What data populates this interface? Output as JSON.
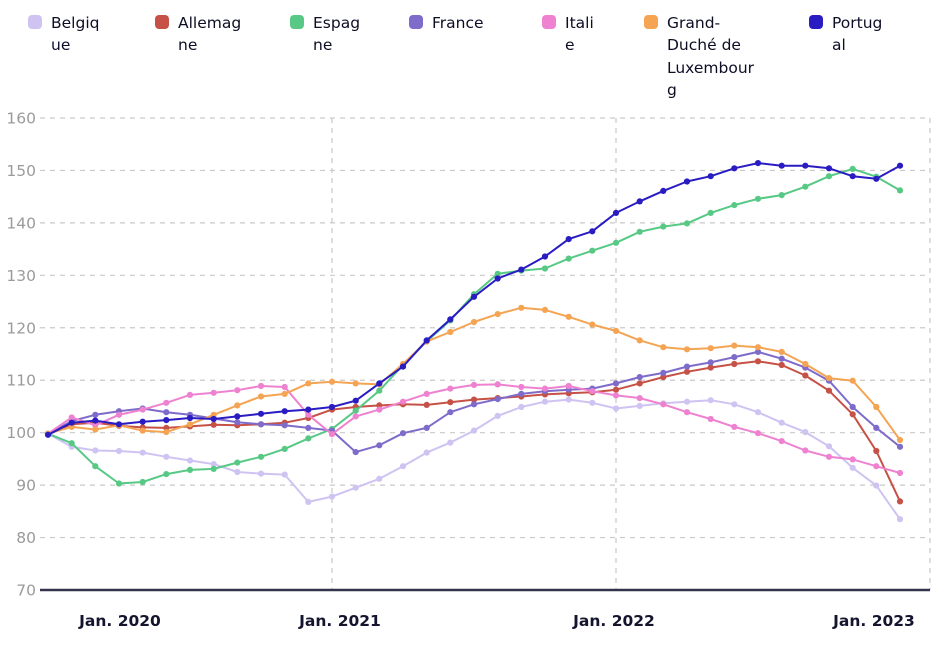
{
  "chart_data": {
    "type": "line",
    "title": "",
    "months_start": "Jan. 2020",
    "months_end": "Jan. 2023",
    "points_per_series": 37,
    "x_ticks": [
      {
        "label": "Jan. 2020",
        "index": 0
      },
      {
        "label": "Jan. 2021",
        "index": 12
      },
      {
        "label": "Jan. 2022",
        "index": 24
      },
      {
        "label": "Jan. 2023",
        "index": 36
      }
    ],
    "y_ticks": [
      70,
      80,
      90,
      100,
      110,
      120,
      130,
      140,
      150,
      160
    ],
    "ylim": [
      70,
      160
    ],
    "grid": "dashed",
    "legend_position": "top",
    "series": [
      {
        "name": "Belgique",
        "color": "#cfc3f2",
        "values": [
          99.8,
          97.3,
          96.6,
          96.5,
          96.2,
          95.4,
          94.7,
          94.0,
          92.5,
          92.2,
          92.0,
          86.8,
          87.8,
          89.5,
          91.2,
          93.6,
          96.2,
          98.1,
          100.4,
          103.2,
          104.9,
          105.9,
          106.3,
          105.7,
          104.6,
          105.1,
          105.6,
          105.9,
          106.2,
          105.4,
          103.9,
          101.9,
          100.1,
          97.4,
          93.3,
          89.9,
          83.5
        ]
      },
      {
        "name": "Allemagne",
        "color": "#c65146",
        "values": [
          99.8,
          101.6,
          101.9,
          101.3,
          101.0,
          100.9,
          101.2,
          101.5,
          101.4,
          101.6,
          101.9,
          102.8,
          104.4,
          104.9,
          105.2,
          105.4,
          105.3,
          105.8,
          106.3,
          106.6,
          106.9,
          107.3,
          107.5,
          107.7,
          108.2,
          109.4,
          110.6,
          111.6,
          112.4,
          113.1,
          113.6,
          112.9,
          110.9,
          108.0,
          103.5,
          96.5,
          86.9
        ]
      },
      {
        "name": "Espagne",
        "color": "#57c985",
        "values": [
          99.8,
          98.0,
          93.6,
          90.3,
          90.6,
          92.1,
          92.9,
          93.1,
          94.3,
          95.4,
          96.9,
          98.9,
          100.7,
          104.2,
          108.0,
          112.9,
          117.4,
          121.4,
          126.4,
          130.3,
          130.9,
          131.3,
          133.2,
          134.7,
          136.2,
          138.3,
          139.3,
          139.9,
          141.9,
          143.4,
          144.6,
          145.3,
          146.9,
          148.9,
          150.3,
          148.8,
          146.2
        ]
      },
      {
        "name": "France",
        "color": "#7e6bca",
        "values": [
          99.8,
          102.2,
          103.4,
          104.1,
          104.6,
          103.9,
          103.4,
          102.7,
          102.0,
          101.6,
          101.4,
          100.9,
          100.4,
          96.3,
          97.6,
          99.9,
          100.9,
          103.9,
          105.4,
          106.4,
          107.4,
          107.9,
          108.2,
          108.4,
          109.4,
          110.6,
          111.4,
          112.6,
          113.4,
          114.4,
          115.4,
          114.1,
          112.4,
          109.9,
          104.9,
          100.9,
          97.3
        ]
      },
      {
        "name": "Italie",
        "color": "#ee82d0",
        "values": [
          99.8,
          102.9,
          101.4,
          103.4,
          104.4,
          105.7,
          107.2,
          107.6,
          108.1,
          108.9,
          108.7,
          103.4,
          99.7,
          103.1,
          104.4,
          105.9,
          107.4,
          108.4,
          109.1,
          109.2,
          108.7,
          108.4,
          108.9,
          107.9,
          107.1,
          106.6,
          105.4,
          103.9,
          102.6,
          101.1,
          99.9,
          98.4,
          96.6,
          95.4,
          94.9,
          93.6,
          92.3
        ]
      },
      {
        "name": "Grand-Duché de Luxembourg",
        "color": "#f4a453",
        "values": [
          99.8,
          101.1,
          100.6,
          101.4,
          100.4,
          100.1,
          101.6,
          103.4,
          105.2,
          106.9,
          107.4,
          109.4,
          109.7,
          109.4,
          109.2,
          113.1,
          117.4,
          119.2,
          121.1,
          122.6,
          123.8,
          123.4,
          122.1,
          120.6,
          119.4,
          117.6,
          116.3,
          115.9,
          116.1,
          116.6,
          116.3,
          115.4,
          113.1,
          110.4,
          109.9,
          104.9,
          98.6
        ]
      },
      {
        "name": "Portugal",
        "color": "#2a1cc3",
        "values": [
          99.6,
          101.9,
          102.3,
          101.6,
          102.1,
          102.4,
          102.8,
          102.6,
          103.1,
          103.6,
          104.1,
          104.4,
          104.9,
          106.1,
          109.4,
          112.6,
          117.6,
          121.6,
          125.9,
          129.4,
          131.1,
          133.6,
          136.9,
          138.4,
          141.9,
          144.1,
          146.1,
          147.9,
          148.9,
          150.4,
          151.4,
          150.9,
          150.9,
          150.4,
          148.9,
          148.4,
          150.9
        ]
      }
    ]
  }
}
